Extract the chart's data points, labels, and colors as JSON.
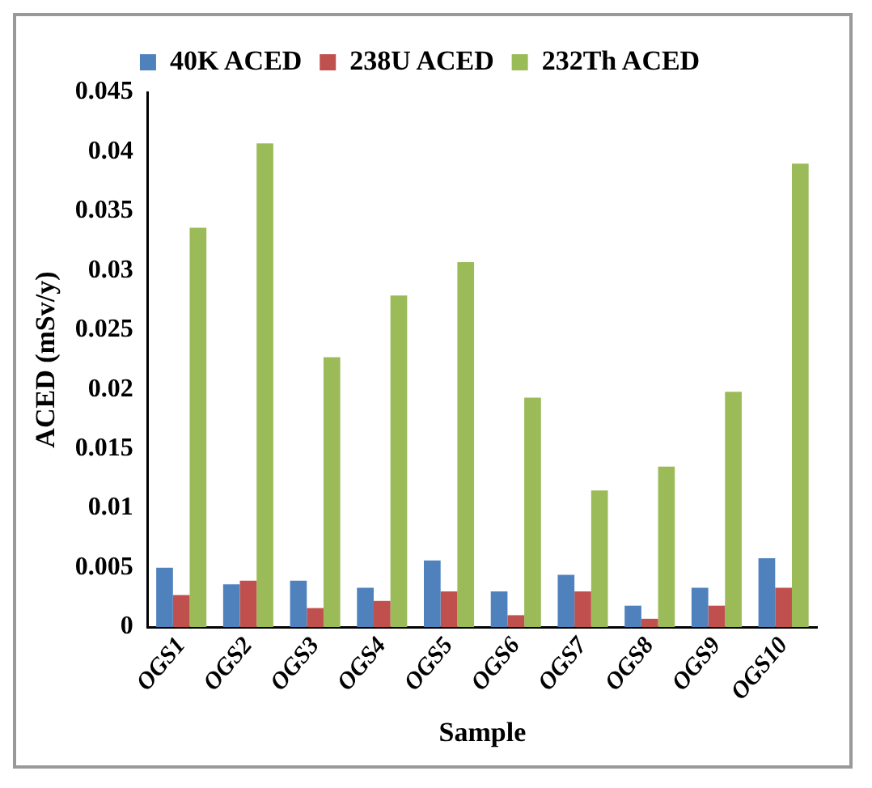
{
  "chart_data": {
    "type": "bar",
    "xlabel": "Sample",
    "ylabel": "ACED (mSv/y)",
    "categories": [
      "OGS1",
      "OGS2",
      "OGS3",
      "OGS4",
      "OGS5",
      "OGS6",
      "OGS7",
      "OGS8",
      "OGS9",
      "OGS10"
    ],
    "series": [
      {
        "name": "40K ACED",
        "color": "#4f81bd",
        "values": [
          0.005,
          0.0036,
          0.0039,
          0.0033,
          0.0056,
          0.003,
          0.0044,
          0.0018,
          0.0033,
          0.0058
        ]
      },
      {
        "name": "238U ACED",
        "color": "#c0504d",
        "values": [
          0.0027,
          0.0039,
          0.0016,
          0.0022,
          0.003,
          0.001,
          0.003,
          0.0007,
          0.0018,
          0.0033
        ]
      },
      {
        "name": "232Th ACED",
        "color": "#9bbb59",
        "values": [
          0.0336,
          0.0407,
          0.0227,
          0.0279,
          0.0307,
          0.0193,
          0.0115,
          0.0135,
          0.0198,
          0.039
        ]
      }
    ],
    "ylim": [
      0,
      0.045
    ],
    "yticks": [
      0,
      0.005,
      0.01,
      0.015,
      0.02,
      0.025,
      0.03,
      0.035,
      0.04,
      0.045
    ],
    "grid": false,
    "legend": "top"
  }
}
